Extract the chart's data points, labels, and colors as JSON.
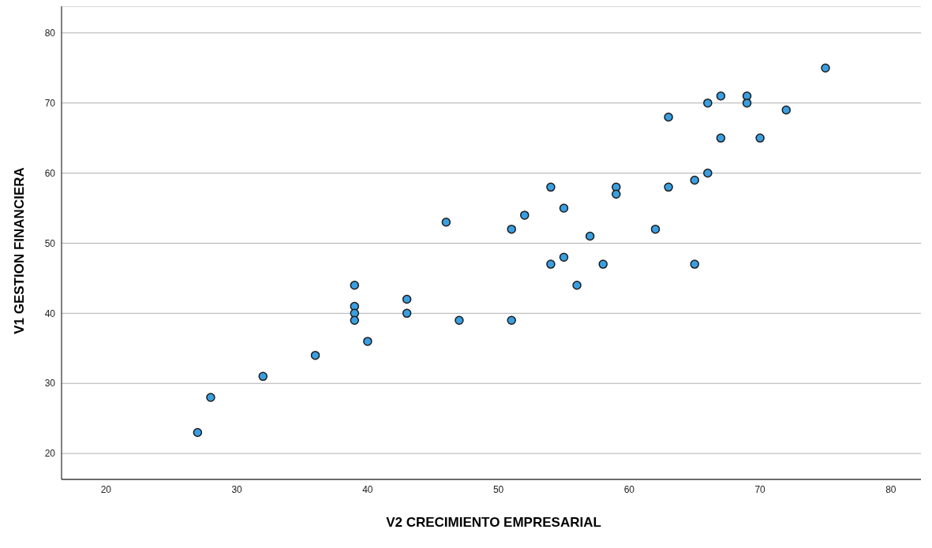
{
  "chart_data": {
    "type": "scatter",
    "xlabel": "V2 CRECIMIENTO EMPRESARIAL",
    "ylabel": "V1 GESTION FINANCIERA",
    "x": [
      75,
      67,
      69,
      66,
      69,
      72,
      63,
      67,
      70,
      66,
      65,
      63,
      54,
      59,
      59,
      55,
      52,
      46,
      51,
      62,
      57,
      55,
      54,
      58,
      65,
      56,
      39,
      43,
      39,
      39,
      43,
      39,
      47,
      51,
      40,
      36,
      32,
      28,
      27
    ],
    "series": [
      {
        "color": "#3a9fe0",
        "values": [
          75,
          71,
          71,
          70,
          70,
          69,
          68,
          65,
          65,
          60,
          59,
          58,
          58,
          58,
          57,
          55,
          54,
          53,
          52,
          52,
          51,
          48,
          47,
          47,
          47,
          44,
          44,
          42,
          41,
          40,
          40,
          39,
          39,
          39,
          36,
          34,
          31,
          28,
          23
        ]
      }
    ],
    "xlim": [
      16.6,
      82.3
    ],
    "ylim": [
      16.3,
      83.8
    ],
    "xticks": [
      20,
      30,
      40,
      50,
      60,
      70,
      80
    ],
    "yticks": [
      20,
      30,
      40,
      50,
      60,
      70,
      80
    ],
    "grid": "y",
    "marker": "circle"
  }
}
